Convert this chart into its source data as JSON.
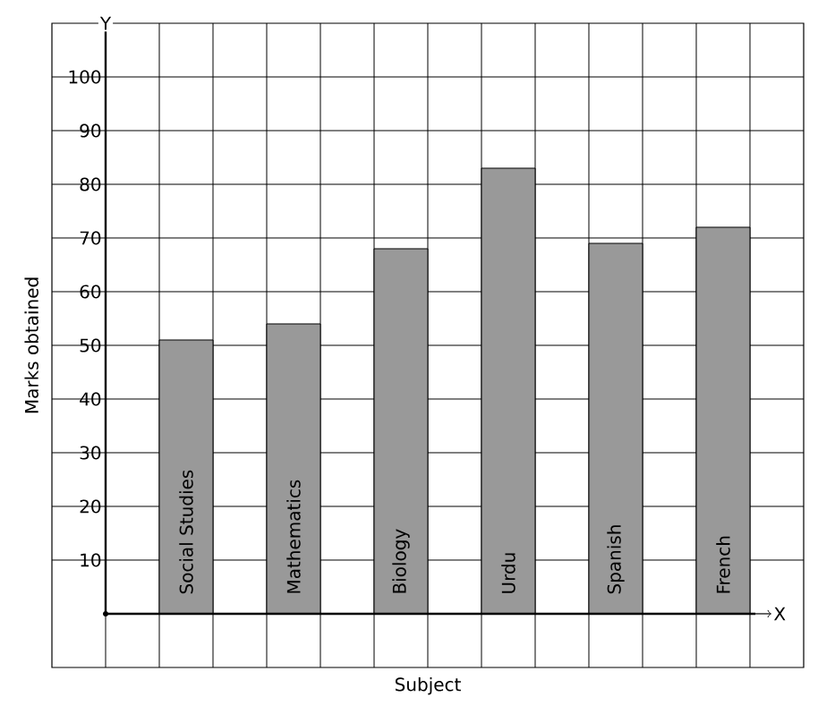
{
  "chart_data": {
    "type": "bar",
    "xlabel": "Subject",
    "ylabel": "Marks obtained",
    "categories": [
      "Social Studies",
      "Mathematics",
      "Biology",
      "Urdu",
      "Spanish",
      "French"
    ],
    "values": [
      51,
      54,
      68,
      83,
      69,
      72
    ],
    "color": "#999999",
    "ylim": [
      -10,
      110
    ],
    "yticks": [
      10,
      20,
      30,
      40,
      50,
      60,
      70,
      80,
      90,
      100
    ],
    "grid": true,
    "annotations": [
      "X",
      "Y"
    ]
  }
}
